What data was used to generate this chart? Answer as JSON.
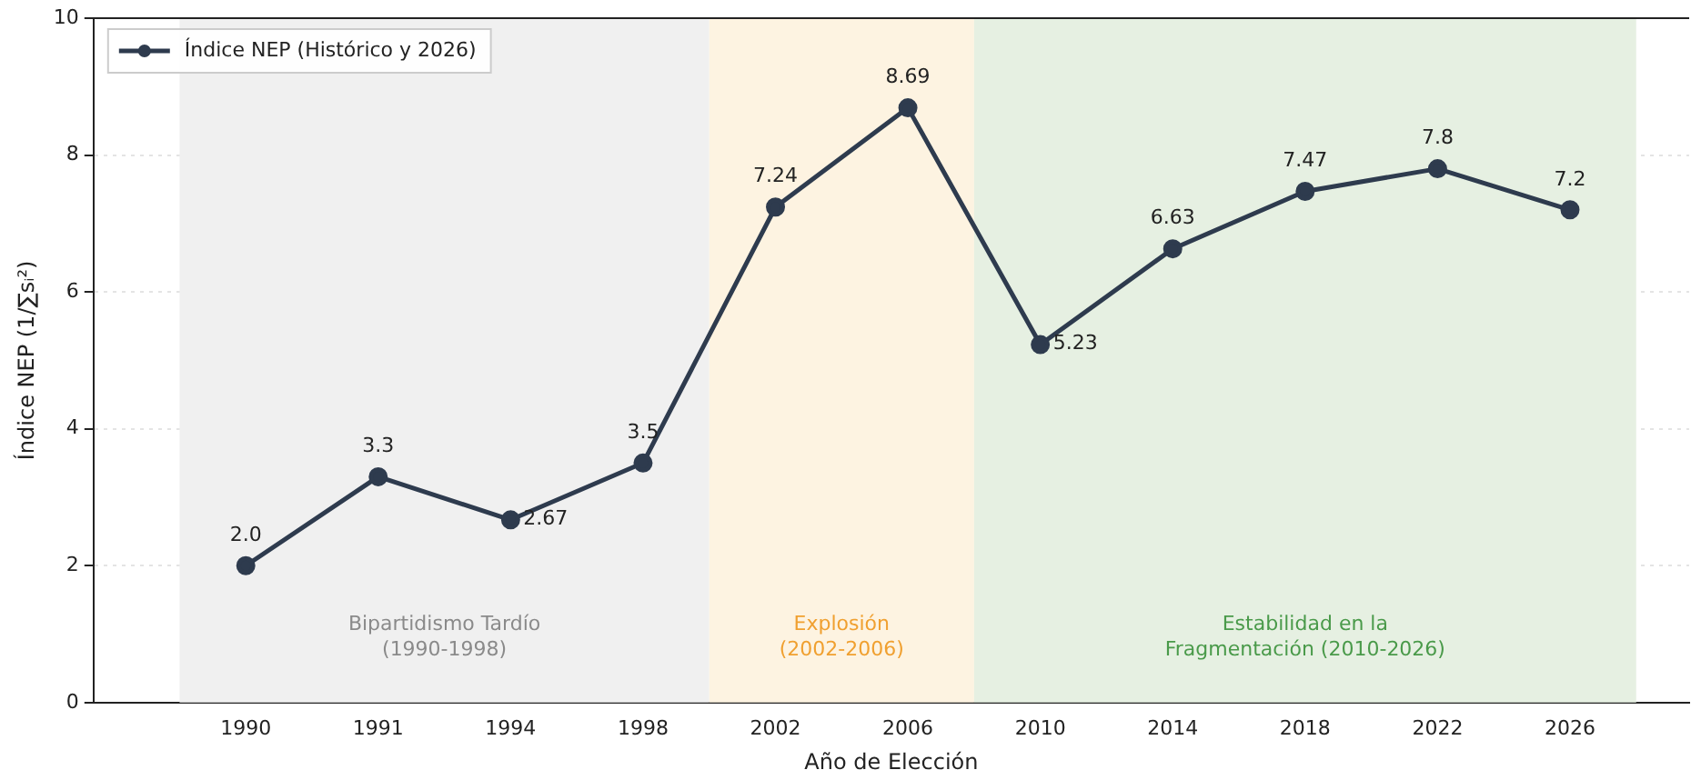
{
  "chart_data": {
    "type": "line",
    "xlabel": "Año de Elección",
    "ylabel": "Índice NEP (1/∑sᵢ²)",
    "categories": [
      "1990",
      "1991",
      "1994",
      "1998",
      "2002",
      "2006",
      "2010",
      "2014",
      "2018",
      "2022",
      "2026"
    ],
    "series": [
      {
        "name": "Índice NEP (Histórico y 2026)",
        "color": "#2e3b4e",
        "values": [
          2.0,
          3.3,
          2.67,
          3.5,
          7.24,
          8.69,
          5.23,
          6.63,
          7.47,
          7.8,
          7.2
        ],
        "value_labels": [
          "2.0",
          "3.3",
          "2.67",
          "3.5",
          "7.24",
          "8.69",
          "5.23",
          "6.63",
          "7.47",
          "7.8",
          "7.2"
        ]
      }
    ],
    "ylim": [
      0,
      10
    ],
    "yticks": [
      0,
      2,
      4,
      6,
      8,
      10
    ],
    "grid": "y",
    "legend": "top left",
    "marker": "circle",
    "line_style": "solid",
    "bands": [
      {
        "axis": "x",
        "from": "1990",
        "to": "1998",
        "label": "Bipartidismo Tardío\n(1990-1998)",
        "color": "#f0f0f0"
      },
      {
        "axis": "x",
        "from": "2002",
        "to": "2006",
        "label": "Explosión\n(2002-2006)",
        "color": "#fdf3e1"
      },
      {
        "axis": "x",
        "from": "2010",
        "to": "2026",
        "label": "Estabilidad en la\nFragmentación (2010-2026)",
        "color": "#e6f0e2"
      }
    ]
  }
}
